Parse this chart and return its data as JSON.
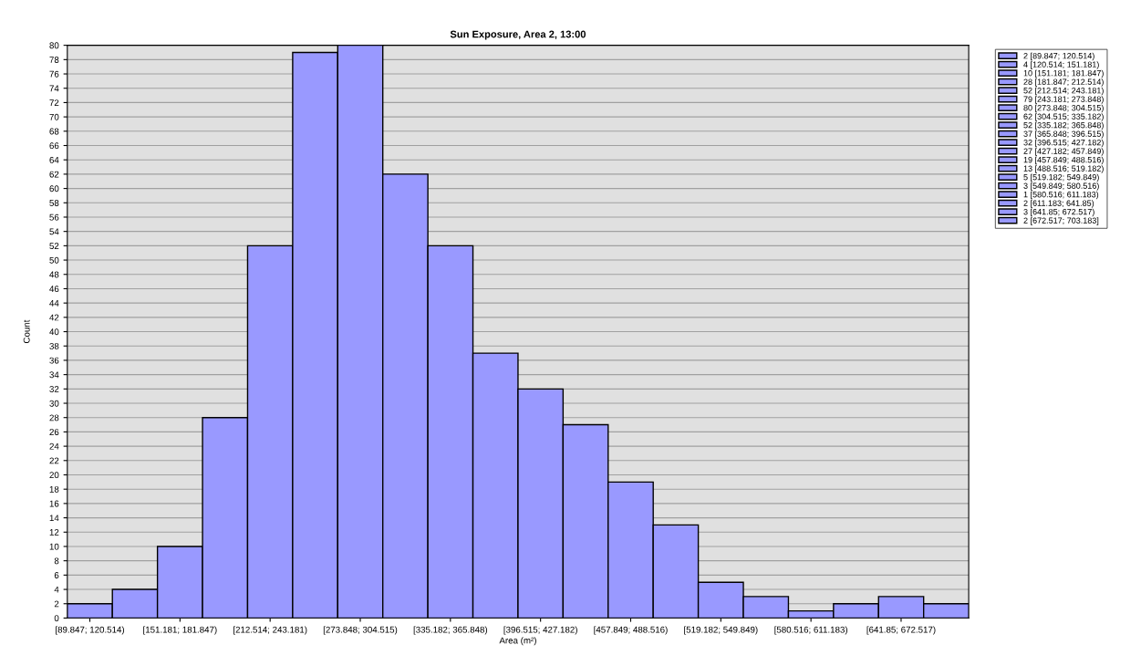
{
  "chart_data": {
    "type": "bar",
    "title": "Sun Exposure, Area 2, 13:00",
    "xlabel": "Area (m²)",
    "ylabel": "Count",
    "categories": [
      "[89.847; 120.514)",
      null,
      "[151.181; 181.847)",
      null,
      "[212.514; 243.181)",
      null,
      "[273.848; 304.515)",
      null,
      "[335.182; 365.848)",
      null,
      "[396.515; 427.182)",
      null,
      "[457.849; 488.516)",
      null,
      "[519.182; 549.849)",
      null,
      "[580.516; 611.183)",
      null,
      "[641.85; 672.517)",
      null
    ],
    "series": [
      {
        "name": "2 [89.847; 120.514)",
        "color": "#9999ff",
        "values": [
          2,
          null,
          null,
          null,
          null,
          null,
          null,
          null,
          null,
          null,
          null,
          null,
          null,
          null,
          null,
          null,
          null,
          null,
          null,
          null
        ]
      },
      {
        "name": "4 [120.514; 151.181)",
        "color": "#9999ff",
        "values": [
          null,
          4,
          null,
          null,
          null,
          null,
          null,
          null,
          null,
          null,
          null,
          null,
          null,
          null,
          null,
          null,
          null,
          null,
          null,
          null
        ]
      },
      {
        "name": "10 [151.181; 181.847)",
        "color": "#9999ff",
        "values": [
          null,
          null,
          10,
          null,
          null,
          null,
          null,
          null,
          null,
          null,
          null,
          null,
          null,
          null,
          null,
          null,
          null,
          null,
          null,
          null
        ]
      },
      {
        "name": "28 [181.847; 212.514)",
        "color": "#9999ff",
        "values": [
          null,
          null,
          null,
          28,
          null,
          null,
          null,
          null,
          null,
          null,
          null,
          null,
          null,
          null,
          null,
          null,
          null,
          null,
          null,
          null
        ]
      },
      {
        "name": "52 [212.514; 243.181)",
        "color": "#9999ff",
        "values": [
          null,
          null,
          null,
          null,
          52,
          null,
          null,
          null,
          null,
          null,
          null,
          null,
          null,
          null,
          null,
          null,
          null,
          null,
          null,
          null
        ]
      },
      {
        "name": "79 [243.181; 273.848)",
        "color": "#9999ff",
        "values": [
          null,
          null,
          null,
          null,
          null,
          79,
          null,
          null,
          null,
          null,
          null,
          null,
          null,
          null,
          null,
          null,
          null,
          null,
          null,
          null
        ]
      },
      {
        "name": "80 [273.848; 304.515)",
        "color": "#9999ff",
        "values": [
          null,
          null,
          null,
          null,
          null,
          null,
          80,
          null,
          null,
          null,
          null,
          null,
          null,
          null,
          null,
          null,
          null,
          null,
          null,
          null
        ]
      },
      {
        "name": "62 [304.515; 335.182)",
        "color": "#9999ff",
        "values": [
          null,
          null,
          null,
          null,
          null,
          null,
          null,
          62,
          null,
          null,
          null,
          null,
          null,
          null,
          null,
          null,
          null,
          null,
          null,
          null
        ]
      },
      {
        "name": "52 [335.182; 365.848)",
        "color": "#9999ff",
        "values": [
          null,
          null,
          null,
          null,
          null,
          null,
          null,
          null,
          52,
          null,
          null,
          null,
          null,
          null,
          null,
          null,
          null,
          null,
          null,
          null
        ]
      },
      {
        "name": "37 [365.848; 396.515)",
        "color": "#9999ff",
        "values": [
          null,
          null,
          null,
          null,
          null,
          null,
          null,
          null,
          null,
          37,
          null,
          null,
          null,
          null,
          null,
          null,
          null,
          null,
          null,
          null
        ]
      },
      {
        "name": "32 [396.515; 427.182)",
        "color": "#9999ff",
        "values": [
          null,
          null,
          null,
          null,
          null,
          null,
          null,
          null,
          null,
          null,
          32,
          null,
          null,
          null,
          null,
          null,
          null,
          null,
          null,
          null
        ]
      },
      {
        "name": "27 [427.182; 457.849)",
        "color": "#9999ff",
        "values": [
          null,
          null,
          null,
          null,
          null,
          null,
          null,
          null,
          null,
          null,
          null,
          27,
          null,
          null,
          null,
          null,
          null,
          null,
          null,
          null
        ]
      },
      {
        "name": "19 [457.849; 488.516)",
        "color": "#9999ff",
        "values": [
          null,
          null,
          null,
          null,
          null,
          null,
          null,
          null,
          null,
          null,
          null,
          null,
          19,
          null,
          null,
          null,
          null,
          null,
          null,
          null
        ]
      },
      {
        "name": "13 [488.516; 519.182)",
        "color": "#9999ff",
        "values": [
          null,
          null,
          null,
          null,
          null,
          null,
          null,
          null,
          null,
          null,
          null,
          null,
          null,
          13,
          null,
          null,
          null,
          null,
          null,
          null
        ]
      },
      {
        "name": "5 [519.182; 549.849)",
        "color": "#9999ff",
        "values": [
          null,
          null,
          null,
          null,
          null,
          null,
          null,
          null,
          null,
          null,
          null,
          null,
          null,
          null,
          5,
          null,
          null,
          null,
          null,
          null
        ]
      },
      {
        "name": "3 [549.849; 580.516)",
        "color": "#9999ff",
        "values": [
          null,
          null,
          null,
          null,
          null,
          null,
          null,
          null,
          null,
          null,
          null,
          null,
          null,
          null,
          null,
          3,
          null,
          null,
          null,
          null
        ]
      },
      {
        "name": "1 [580.516; 611.183)",
        "color": "#9999ff",
        "values": [
          null,
          null,
          null,
          null,
          null,
          null,
          null,
          null,
          null,
          null,
          null,
          null,
          null,
          null,
          null,
          null,
          1,
          null,
          null,
          null
        ]
      },
      {
        "name": "2 [611.183; 641.85)",
        "color": "#9999ff",
        "values": [
          null,
          null,
          null,
          null,
          null,
          null,
          null,
          null,
          null,
          null,
          null,
          null,
          null,
          null,
          null,
          null,
          null,
          2,
          null,
          null
        ]
      },
      {
        "name": "3 [641.85; 672.517)",
        "color": "#9999ff",
        "values": [
          null,
          null,
          null,
          null,
          null,
          null,
          null,
          null,
          null,
          null,
          null,
          null,
          null,
          null,
          null,
          null,
          null,
          null,
          3,
          null
        ]
      },
      {
        "name": "2 [672.517; 703.183]",
        "color": "#9999ff",
        "values": [
          null,
          null,
          null,
          null,
          null,
          null,
          null,
          null,
          null,
          null,
          null,
          null,
          null,
          null,
          null,
          null,
          null,
          null,
          null,
          2
        ]
      }
    ],
    "ylim": [
      0,
      80
    ],
    "yticks": [
      0,
      2,
      4,
      6,
      8,
      10,
      12,
      14,
      16,
      18,
      20,
      22,
      24,
      26,
      28,
      30,
      32,
      34,
      36,
      38,
      40,
      42,
      44,
      46,
      48,
      50,
      52,
      54,
      56,
      58,
      60,
      62,
      64,
      66,
      68,
      70,
      72,
      74,
      76,
      78,
      80
    ],
    "grid": "y",
    "legend": "top right"
  }
}
